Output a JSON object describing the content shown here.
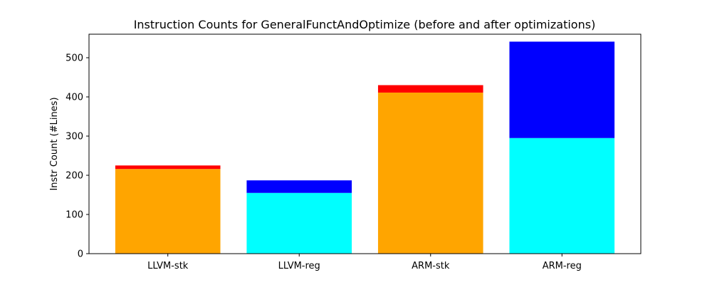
{
  "chart_data": {
    "type": "bar",
    "stacked": true,
    "title": "Instruction Counts for GeneralFunctAndOptimize (before and after optimizations)",
    "xlabel": "",
    "ylabel": "Instr Count (#Lines)",
    "ylim": [
      0,
      560
    ],
    "yticks": [
      0,
      100,
      200,
      300,
      400,
      500
    ],
    "grid": false,
    "categories": [
      "LLVM-stk",
      "LLVM-reg",
      "ARM-stk",
      "ARM-reg"
    ],
    "bars": [
      {
        "category": "LLVM-stk",
        "segments": [
          {
            "value": 216,
            "color": "#ffa500"
          },
          {
            "value": 9,
            "color": "#ff0000"
          }
        ]
      },
      {
        "category": "LLVM-reg",
        "segments": [
          {
            "value": 155,
            "color": "#00ffff"
          },
          {
            "value": 32,
            "color": "#0000ff"
          }
        ]
      },
      {
        "category": "ARM-stk",
        "segments": [
          {
            "value": 411,
            "color": "#ffa500"
          },
          {
            "value": 19,
            "color": "#ff0000"
          }
        ]
      },
      {
        "category": "ARM-reg",
        "segments": [
          {
            "value": 295,
            "color": "#00ffff"
          },
          {
            "value": 246,
            "color": "#0000ff"
          }
        ]
      }
    ]
  }
}
